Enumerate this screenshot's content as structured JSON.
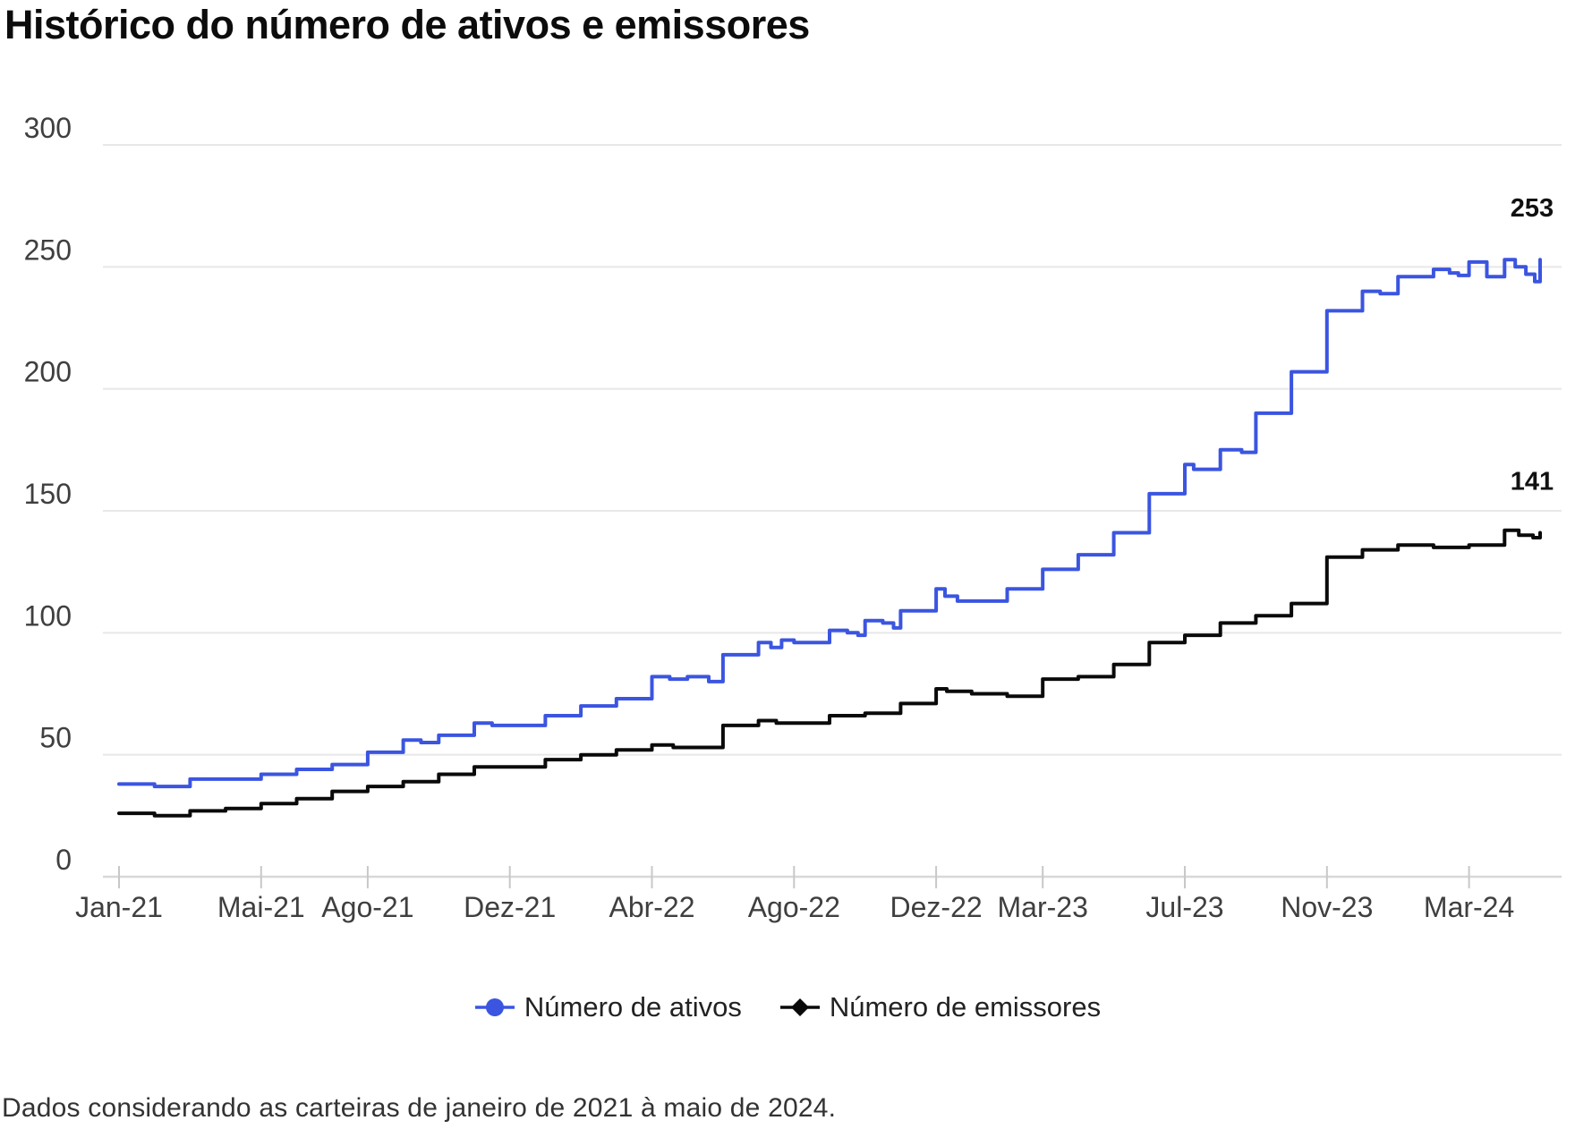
{
  "title": "Histórico do número de ativos e emissores",
  "footnote": "Dados considerando as carteiras de janeiro de 2021 à maio de 2024.",
  "legend": [
    {
      "label": "Número de ativos",
      "marker": "circle",
      "color": "#3b55e0"
    },
    {
      "label": "Número de emissores",
      "marker": "diamond",
      "color": "#0a0a0a"
    }
  ],
  "colors": {
    "ativos": "#3b55e0",
    "emissores": "#0a0a0a",
    "grid": "#e8e8e8",
    "axis_line": "#d8d8d8",
    "tick": "#c8c8c8",
    "axis_text": "#3f3f3f",
    "end_label_text": "#111111"
  },
  "chart_data": {
    "type": "line",
    "step": "after",
    "title": "Histórico do número de ativos e emissores",
    "x_unit": "months since Jan-2021 (0 = Jan-21 ... 40 = Mai-24)",
    "x_tick_months": [
      0,
      4,
      7,
      11,
      15,
      19,
      23,
      26,
      30,
      34,
      38
    ],
    "x_tick_labels": [
      "Jan-21",
      "Mai-21",
      "Ago-21",
      "Dez-21",
      "Abr-22",
      "Ago-22",
      "Dez-22",
      "Mar-23",
      "Jul-23",
      "Nov-23",
      "Mar-24"
    ],
    "y_ticks": [
      0,
      50,
      100,
      150,
      200,
      250,
      300
    ],
    "ylim": [
      0,
      300
    ],
    "xlim": [
      0,
      40
    ],
    "grid": "horizontal",
    "legend_position": "bottom",
    "series": [
      {
        "name": "Número de ativos",
        "color": "#3b55e0",
        "end_label": "253",
        "final_value": 253,
        "points": [
          [
            0,
            38
          ],
          [
            1,
            37
          ],
          [
            2,
            40
          ],
          [
            3,
            40
          ],
          [
            4,
            42
          ],
          [
            5,
            44
          ],
          [
            6,
            46
          ],
          [
            7,
            51
          ],
          [
            8,
            56
          ],
          [
            8.5,
            55
          ],
          [
            9,
            58
          ],
          [
            10,
            63
          ],
          [
            10.5,
            62
          ],
          [
            11,
            62
          ],
          [
            12,
            66
          ],
          [
            13,
            70
          ],
          [
            14,
            73
          ],
          [
            15,
            82
          ],
          [
            15.5,
            81
          ],
          [
            16,
            82
          ],
          [
            16.6,
            80
          ],
          [
            17,
            91
          ],
          [
            18,
            96
          ],
          [
            18.35,
            94
          ],
          [
            18.65,
            97
          ],
          [
            19,
            96
          ],
          [
            20,
            101
          ],
          [
            20.5,
            100
          ],
          [
            20.8,
            99
          ],
          [
            21,
            105
          ],
          [
            21.5,
            104
          ],
          [
            21.8,
            102
          ],
          [
            22,
            109
          ],
          [
            23,
            118
          ],
          [
            23.25,
            115
          ],
          [
            23.6,
            113
          ],
          [
            24,
            113
          ],
          [
            25,
            118
          ],
          [
            26,
            126
          ],
          [
            27,
            132
          ],
          [
            28,
            141
          ],
          [
            29,
            157
          ],
          [
            30,
            169
          ],
          [
            30.25,
            167
          ],
          [
            31,
            175
          ],
          [
            31.6,
            174
          ],
          [
            32,
            190
          ],
          [
            33,
            207
          ],
          [
            34,
            232
          ],
          [
            35,
            240
          ],
          [
            35.5,
            239
          ],
          [
            36,
            246
          ],
          [
            37,
            249
          ],
          [
            37.45,
            247.5
          ],
          [
            37.7,
            246.5
          ],
          [
            38,
            252
          ],
          [
            38.5,
            246
          ],
          [
            39,
            253
          ],
          [
            39.3,
            250
          ],
          [
            39.6,
            247
          ],
          [
            39.85,
            244
          ],
          [
            40,
            253
          ]
        ]
      },
      {
        "name": "Número de emissores",
        "color": "#0a0a0a",
        "end_label": "141",
        "final_value": 141,
        "points": [
          [
            0,
            26
          ],
          [
            1,
            25
          ],
          [
            2,
            27
          ],
          [
            3,
            28
          ],
          [
            4,
            30
          ],
          [
            5,
            32
          ],
          [
            6,
            35
          ],
          [
            7,
            37
          ],
          [
            8,
            39
          ],
          [
            9,
            42
          ],
          [
            10,
            45
          ],
          [
            11,
            45
          ],
          [
            12,
            48
          ],
          [
            13,
            50
          ],
          [
            14,
            52
          ],
          [
            15,
            54
          ],
          [
            15.6,
            53
          ],
          [
            16,
            53
          ],
          [
            17,
            62
          ],
          [
            18,
            64
          ],
          [
            18.5,
            63
          ],
          [
            19,
            63
          ],
          [
            20,
            66
          ],
          [
            21,
            67
          ],
          [
            22,
            71
          ],
          [
            23,
            77
          ],
          [
            23.3,
            76
          ],
          [
            24,
            75
          ],
          [
            25,
            74
          ],
          [
            26,
            81
          ],
          [
            27,
            82
          ],
          [
            28,
            87
          ],
          [
            29,
            96
          ],
          [
            30,
            99
          ],
          [
            31,
            104
          ],
          [
            32,
            107
          ],
          [
            33,
            112
          ],
          [
            34,
            131
          ],
          [
            35,
            134
          ],
          [
            36,
            136
          ],
          [
            37,
            135
          ],
          [
            38,
            136
          ],
          [
            39,
            142
          ],
          [
            39.4,
            140
          ],
          [
            39.8,
            139
          ],
          [
            40,
            141
          ]
        ]
      }
    ]
  }
}
